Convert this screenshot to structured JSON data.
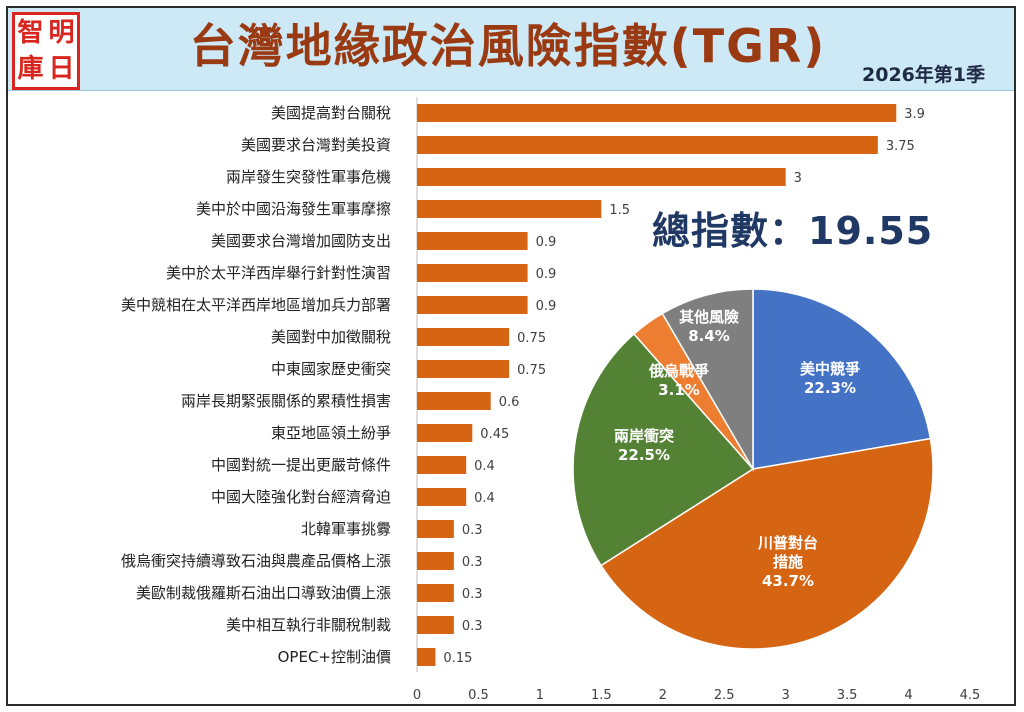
{
  "header": {
    "logo_chars": [
      "智",
      "明",
      "庫",
      "日"
    ],
    "title": "台灣地緣政治風險指數(TGR)",
    "subtitle": "2026年第1季"
  },
  "total_index": "總指數：19.55",
  "colors": {
    "bar": "#d56512",
    "pie_us_china": "#4472c4",
    "pie_trump": "#d56512",
    "pie_cross_strait": "#548235",
    "pie_russia_ukraine": "#ed7d31",
    "pie_other": "#7f7f7f",
    "header_bg": "#cde9f6",
    "title": "#9a3a12"
  },
  "chart_data": [
    {
      "type": "bar",
      "orientation": "horizontal",
      "categories": [
        "美國提高對台關稅",
        "美國要求台灣對美投資",
        "兩岸發生突發性軍事危機",
        "美中於中國沿海發生軍事摩擦",
        "美國要求台灣增加國防支出",
        "美中於太平洋西岸舉行針對性演習",
        "美中競相在太平洋西岸地區增加兵力部署",
        "美國對中加徵關稅",
        "中東國家歷史衝突",
        "兩岸長期緊張關係的累積性損害",
        "東亞地區領土紛爭",
        "中國對統一提出更嚴苛條件",
        "中國大陸強化對台經濟脅迫",
        "北韓軍事挑釁",
        "俄烏衝突持續導致石油與農產品價格上漲",
        "美歐制裁俄羅斯石油出口導致油價上漲",
        "美中相互執行非關稅制裁",
        "OPEC+控制油價"
      ],
      "values": [
        3.9,
        3.75,
        3,
        1.5,
        0.9,
        0.9,
        0.9,
        0.75,
        0.75,
        0.6,
        0.45,
        0.4,
        0.4,
        0.3,
        0.3,
        0.3,
        0.3,
        0.15
      ],
      "value_labels": [
        "3.9",
        "3.75",
        "3",
        "1.5",
        "0.9",
        "0.9",
        "0.9",
        "0.75",
        "0.75",
        "0.6",
        "0.45",
        "0.4",
        "0.4",
        "0.3",
        "0.3",
        "0.3",
        "0.3",
        "0.15"
      ],
      "xlim": [
        0,
        4.5
      ],
      "xticks": [
        "0",
        "0.5",
        "1",
        "1.5",
        "2",
        "2.5",
        "3",
        "3.5",
        "4",
        "4.5"
      ],
      "grid": false
    },
    {
      "type": "pie",
      "slices": [
        {
          "name": "美中競爭",
          "value": 22.3,
          "label": "22.3%",
          "color_key": "pie_us_china"
        },
        {
          "name": "川普對台措施",
          "lines": [
            "川普對台",
            "措施"
          ],
          "value": 43.7,
          "label": "43.7%",
          "color_key": "pie_trump"
        },
        {
          "name": "兩岸衝突",
          "value": 22.5,
          "label": "22.5%",
          "color_key": "pie_cross_strait"
        },
        {
          "name": "俄烏戰爭",
          "value": 3.1,
          "label": "3.1%",
          "color_key": "pie_russia_ukraine"
        },
        {
          "name": "其他風險",
          "value": 8.4,
          "label": "8.4%",
          "color_key": "pie_other"
        }
      ]
    }
  ]
}
